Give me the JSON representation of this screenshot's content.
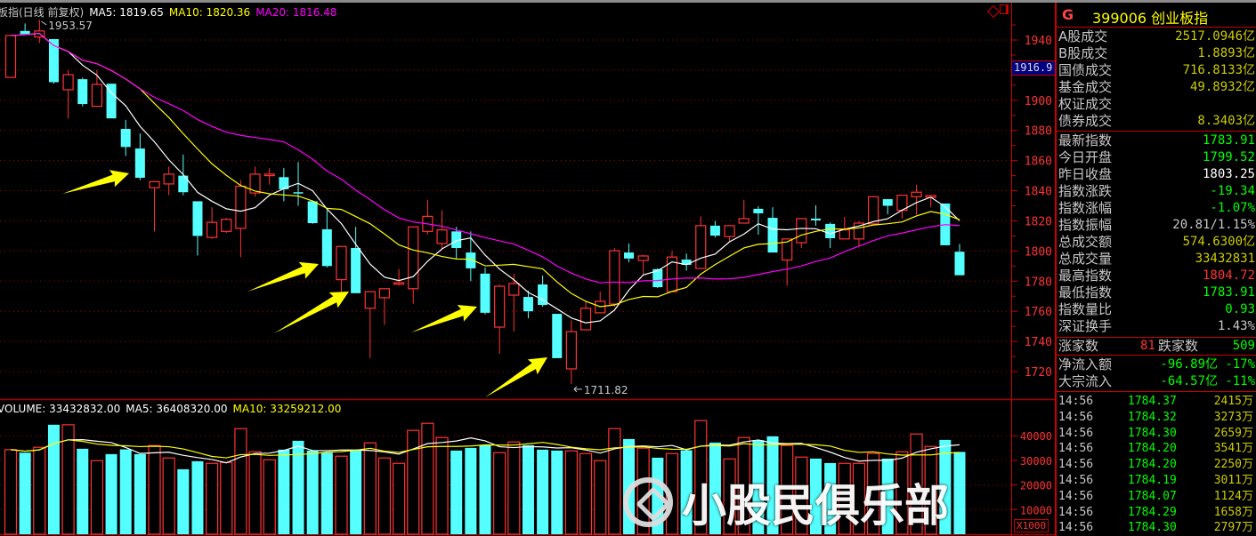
{
  "header": {
    "title": "板指(日线 前复权)",
    "ma5": "MA5: 1819.65",
    "ma10": "MA10: 1820.36",
    "ma20": "MA20: 1816.48",
    "high_mark": "1953.57",
    "low_mark": "1711.82",
    "cursor_price": "1916.9"
  },
  "volume_header": {
    "vol": "VOLUME: 33432832.00",
    "ma5": "MA5: 36408320.00",
    "ma10": "MA10: 33259212.00",
    "unit": "X1000"
  },
  "icons": [
    "diamond-icon",
    "window-layout-icon"
  ],
  "colors": {
    "up": "#ff3333",
    "down": "#55ffff",
    "ma5": "#ffffff",
    "ma10": "#ffff00",
    "ma20": "#ff00ff",
    "arrow": "#ffff00",
    "grid": "#aa0000"
  },
  "panel": {
    "flag": "G",
    "code_name": "399006 创业板指",
    "turnover": [
      {
        "label": "A股成交",
        "value": "2517.0946亿",
        "color": "#cccc00"
      },
      {
        "label": "B股成交",
        "value": "1.8893亿",
        "color": "#cccc00"
      },
      {
        "label": "国债成交",
        "value": "716.8133亿",
        "color": "#cccc00"
      },
      {
        "label": "基金成交",
        "value": "49.8932亿",
        "color": "#cccc00"
      },
      {
        "label": "权证成交",
        "value": "",
        "color": "#cccc00"
      },
      {
        "label": "债券成交",
        "value": "8.3403亿",
        "color": "#cccc00"
      }
    ],
    "stats": [
      {
        "label": "最新指数",
        "value": "1783.91",
        "color": "#00ff00"
      },
      {
        "label": "今日开盘",
        "value": "1799.52",
        "color": "#00ff00"
      },
      {
        "label": "昨日收盘",
        "value": "1803.25",
        "color": "#ffffff"
      },
      {
        "label": "指数涨跌",
        "value": "-19.34",
        "color": "#00ff00"
      },
      {
        "label": "指数涨幅",
        "value": "-1.07%",
        "color": "#00ff00"
      },
      {
        "label": "指数振幅",
        "value": "20.81/1.15%",
        "color": "#c8c8c8"
      },
      {
        "label": "总成交额",
        "value": "574.6300亿",
        "color": "#cccc00"
      },
      {
        "label": "总成交量",
        "value": "33432831",
        "color": "#cccc00"
      },
      {
        "label": "最高指数",
        "value": "1804.72",
        "color": "#ff3333"
      },
      {
        "label": "最低指数",
        "value": "1783.91",
        "color": "#00ff00"
      },
      {
        "label": "指数量比",
        "value": "0.93",
        "color": "#00ff00"
      },
      {
        "label": "深证换手",
        "value": "1.43%",
        "color": "#c8c8c8"
      }
    ],
    "breadth": {
      "up_label": "涨家数",
      "up_value": "81",
      "down_label": "跌家数",
      "down_value": "509"
    },
    "flows": [
      {
        "label": "净流入额",
        "value": "-96.89亿",
        "pct": "-17%"
      },
      {
        "label": "大宗流入",
        "value": "-64.57亿",
        "pct": "-11%"
      }
    ],
    "ticks": [
      {
        "time": "14:56",
        "price": "1784.37",
        "vol": "2415万"
      },
      {
        "time": "14:56",
        "price": "1784.32",
        "vol": "3273万"
      },
      {
        "time": "14:56",
        "price": "1784.30",
        "vol": "2659万"
      },
      {
        "time": "14:56",
        "price": "1784.20",
        "vol": "3541万"
      },
      {
        "time": "14:56",
        "price": "1784.20",
        "vol": "2250万"
      },
      {
        "time": "14:56",
        "price": "1784.19",
        "vol": "3011万"
      },
      {
        "time": "14:56",
        "price": "1784.07",
        "vol": "1124万"
      },
      {
        "time": "14:56",
        "price": "1784.29",
        "vol": "1658万"
      },
      {
        "time": "14:56",
        "price": "1784.30",
        "vol": "2797万"
      }
    ]
  },
  "watermark": "小股民俱乐部",
  "chart_data": {
    "type": "candlestick",
    "price_axis": {
      "ylim": [
        1705,
        1966
      ],
      "ticks": [
        1940,
        1920,
        1900,
        1880,
        1860,
        1840,
        1820,
        1800,
        1780,
        1760,
        1740,
        1720
      ],
      "labels": [
        "1940",
        "1900",
        "1880",
        "1860",
        "1840",
        "1820",
        "1800",
        "1780",
        "1760",
        "1740",
        "1720"
      ]
    },
    "volume_axis": {
      "unit": "X1000",
      "ylim": [
        0,
        47000
      ],
      "ticks": [
        40000,
        30000,
        20000,
        10000
      ],
      "labels": [
        "40000",
        "30000",
        "20000",
        "10000"
      ]
    },
    "grid": true,
    "moving_averages": [
      5,
      10,
      20
    ],
    "ohlc": [
      [
        1915.2,
        1943,
        1915.2,
        1943
      ],
      [
        1946,
        1951,
        1944,
        1944
      ],
      [
        1942,
        1953.57,
        1938,
        1946
      ],
      [
        1940.6,
        1940.6,
        1911,
        1912
      ],
      [
        1907,
        1920,
        1888,
        1917
      ],
      [
        1914,
        1915,
        1896,
        1897.5
      ],
      [
        1896,
        1920,
        1896,
        1910.5
      ],
      [
        1911,
        1911,
        1888,
        1888
      ],
      [
        1881,
        1887,
        1863,
        1869
      ],
      [
        1868,
        1878,
        1847,
        1848.6
      ],
      [
        1842,
        1846,
        1813,
        1846
      ],
      [
        1844.5,
        1856,
        1837,
        1851
      ],
      [
        1850,
        1864,
        1837,
        1839
      ],
      [
        1833,
        1833,
        1797,
        1810
      ],
      [
        1809,
        1829,
        1808,
        1819
      ],
      [
        1813,
        1822,
        1812,
        1821
      ],
      [
        1815,
        1847,
        1796,
        1843
      ],
      [
        1838.5,
        1856,
        1836,
        1851
      ],
      [
        1850,
        1855,
        1844,
        1851
      ],
      [
        1849,
        1855,
        1833,
        1841
      ],
      [
        1839,
        1859,
        1830,
        1838.5
      ],
      [
        1833,
        1833,
        1818,
        1818.5
      ],
      [
        1814.4,
        1827,
        1789,
        1790
      ],
      [
        1781,
        1803,
        1773,
        1803
      ],
      [
        1802,
        1816,
        1772,
        1772
      ],
      [
        1762,
        1773,
        1729,
        1773
      ],
      [
        1769,
        1775,
        1751,
        1775
      ],
      [
        1778,
        1788,
        1777,
        1779
      ],
      [
        1775,
        1816,
        1765,
        1816
      ],
      [
        1813,
        1834,
        1811,
        1823
      ],
      [
        1805,
        1827,
        1801,
        1814
      ],
      [
        1813,
        1816,
        1795,
        1802
      ],
      [
        1799,
        1813,
        1780,
        1788.5
      ],
      [
        1785,
        1789,
        1758,
        1759
      ],
      [
        1749.5,
        1778,
        1731.8,
        1776.6
      ],
      [
        1770.7,
        1784.9,
        1746.6,
        1778.4
      ],
      [
        1769.5,
        1773.7,
        1755.4,
        1760
      ],
      [
        1777.8,
        1783.7,
        1763,
        1764.2
      ],
      [
        1758.3,
        1758.3,
        1728.9,
        1728.9
      ],
      [
        1721.8,
        1754,
        1711.82,
        1746.5
      ],
      [
        1747.7,
        1766.6,
        1747.7,
        1762
      ],
      [
        1759,
        1773,
        1759,
        1766.6
      ],
      [
        1764.8,
        1802,
        1763,
        1800.2
      ],
      [
        1799,
        1805,
        1792.5,
        1795
      ],
      [
        1793.7,
        1797.5,
        1783.7,
        1796.7
      ],
      [
        1788,
        1788.5,
        1775.4,
        1776
      ],
      [
        1773,
        1800,
        1773,
        1796
      ],
      [
        1794.3,
        1798.4,
        1787,
        1790.8
      ],
      [
        1788.4,
        1823,
        1788,
        1816.8
      ],
      [
        1816.8,
        1820,
        1809,
        1810.2
      ],
      [
        1809.6,
        1816.8,
        1806,
        1816.8
      ],
      [
        1818.5,
        1834,
        1818.5,
        1821.5
      ],
      [
        1828,
        1829.7,
        1810.8,
        1825
      ],
      [
        1822,
        1829,
        1799,
        1799
      ],
      [
        1794,
        1808,
        1777,
        1808
      ],
      [
        1805.5,
        1821.5,
        1802,
        1821.5
      ],
      [
        1821.5,
        1830.3,
        1816.8,
        1820.3
      ],
      [
        1818,
        1819,
        1802,
        1808.5
      ],
      [
        1808,
        1822.6,
        1808,
        1814
      ],
      [
        1808,
        1819.7,
        1803,
        1818.5
      ],
      [
        1818,
        1836,
        1817,
        1836
      ],
      [
        1834.4,
        1834.4,
        1824.4,
        1830
      ],
      [
        1827,
        1837,
        1821.5,
        1837
      ],
      [
        1836,
        1844,
        1824,
        1839
      ],
      [
        1835.6,
        1837,
        1829,
        1836.8
      ],
      [
        1831.5,
        1831.5,
        1803.8,
        1803.8
      ],
      [
        1799.52,
        1804.72,
        1783.91,
        1783.91
      ]
    ],
    "volume": [
      34336,
      33131,
      35300,
      44460,
      44460,
      34700,
      29880,
      32530,
      34460,
      32530,
      36020,
      30960,
      26380,
      29640,
      28790,
      29150,
      42890,
      33490,
      30240,
      34340,
      37950,
      33980,
      33130,
      31690,
      34220,
      37110,
      30960,
      28790,
      42170,
      45060,
      39280,
      33980,
      35060,
      36260,
      33130,
      37470,
      36140,
      34340,
      33980,
      33850,
      32770,
      29880,
      42890,
      38670,
      34940,
      31080,
      32770,
      34100,
      46150,
      37230,
      30600,
      39280,
      38190,
      39760,
      36020,
      31330,
      30720,
      28910,
      28790,
      28790,
      32770,
      30720,
      33490,
      40720,
      35660,
      38310,
      33433
    ]
  }
}
